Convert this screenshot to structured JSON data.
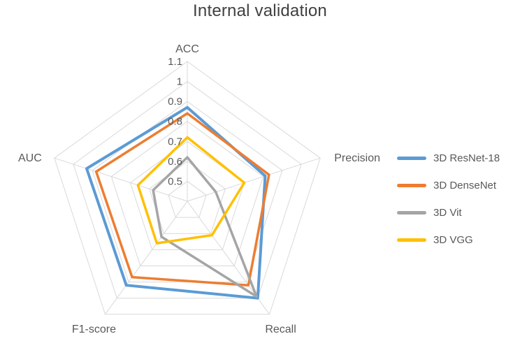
{
  "chart_data": {
    "type": "radar",
    "title": "Internal validation",
    "categories": [
      "ACC",
      "Precision",
      "Recall",
      "F1-score",
      "AUC"
    ],
    "rlim": [
      0.4,
      1.1
    ],
    "ticks": [
      {
        "label": "1.1",
        "value": 1.1
      },
      {
        "label": "1",
        "value": 1.0
      },
      {
        "label": "0.9",
        "value": 0.9
      },
      {
        "label": "0.8",
        "value": 0.8
      },
      {
        "label": "0.7",
        "value": 0.7
      },
      {
        "label": "0.6",
        "value": 0.6
      },
      {
        "label": "0.5",
        "value": 0.5
      }
    ],
    "grid": true,
    "legend_position": "right",
    "series": [
      {
        "name": "3D ResNet-18",
        "color": "#5B9BD5",
        "values": [
          0.87,
          0.81,
          1.0,
          0.92,
          0.93
        ]
      },
      {
        "name": "3D DenseNet",
        "color": "#ED7D31",
        "values": [
          0.84,
          0.83,
          0.92,
          0.87,
          0.88
        ]
      },
      {
        "name": "3D Vit",
        "color": "#A5A5A5",
        "values": [
          0.62,
          0.55,
          0.99,
          0.62,
          0.58
        ]
      },
      {
        "name": "3D VGG",
        "color": "#FFC000",
        "values": [
          0.72,
          0.7,
          0.61,
          0.66,
          0.66
        ]
      }
    ],
    "grid_color": "#D9D9D9",
    "text_color": "#595959"
  }
}
